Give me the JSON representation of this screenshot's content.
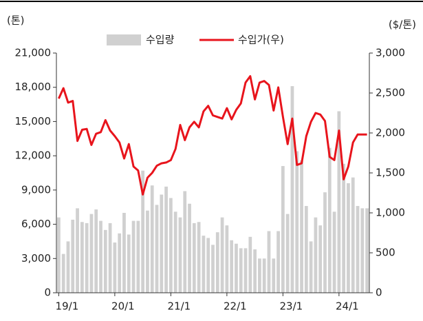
{
  "chart_data": {
    "type": "bar_line",
    "y_label": "(톤)",
    "y2_label": "($/톤)",
    "categories": [
      "19/1",
      null,
      null,
      null,
      null,
      null,
      null,
      null,
      null,
      null,
      null,
      null,
      "20/1",
      null,
      null,
      null,
      null,
      null,
      null,
      null,
      null,
      null,
      null,
      null,
      "21/1",
      null,
      null,
      null,
      null,
      null,
      null,
      null,
      null,
      null,
      null,
      null,
      "22/1",
      null,
      null,
      null,
      null,
      null,
      null,
      null,
      null,
      null,
      null,
      null,
      "23/1",
      null,
      null,
      null,
      null,
      null,
      null,
      null,
      null,
      null,
      null,
      null,
      "24/1",
      null,
      null,
      null,
      null,
      null,
      null
    ],
    "series": [
      {
        "name": "수입량",
        "color": "#d0d0d0",
        "axis": "y",
        "values": [
          6600,
          3400,
          4500,
          6400,
          7400,
          6200,
          6100,
          6900,
          7300,
          6300,
          5500,
          6100,
          4400,
          5200,
          7000,
          5100,
          6300,
          6300,
          10700,
          7200,
          9400,
          7700,
          8600,
          9300,
          8300,
          7100,
          6600,
          8900,
          7800,
          6100,
          6200,
          5000,
          4800,
          4200,
          5300,
          6600,
          5900,
          4600,
          4300,
          3900,
          3900,
          4900,
          3800,
          3000,
          3000,
          5400,
          3000,
          5400,
          11100,
          6900,
          18100,
          12400,
          11600,
          7600,
          4500,
          6600,
          5900,
          8800,
          12700,
          7100,
          15900,
          11300,
          9600,
          10100,
          7600,
          7400,
          7400
        ]
      },
      {
        "name": "수입가(우)",
        "color": "#e8141c",
        "axis": "y2",
        "values": [
          2430,
          2560,
          2380,
          2400,
          1900,
          2040,
          2050,
          1850,
          1990,
          2010,
          2160,
          2030,
          1960,
          1880,
          1680,
          1860,
          1580,
          1530,
          1230,
          1440,
          1500,
          1590,
          1620,
          1630,
          1660,
          1800,
          2100,
          1910,
          2070,
          2140,
          2070,
          2270,
          2340,
          2220,
          2200,
          2180,
          2310,
          2170,
          2290,
          2370,
          2630,
          2710,
          2420,
          2630,
          2650,
          2600,
          2280,
          2570,
          2200,
          1860,
          2180,
          1600,
          1620,
          1960,
          2140,
          2250,
          2230,
          2150,
          1700,
          1660,
          2030,
          1420,
          1580,
          1880,
          1980,
          1980,
          1980
        ]
      }
    ],
    "ylim": [
      0,
      21000
    ],
    "yticks": [
      0,
      {
        "value": 3000,
        "label": "3,000"
      },
      {
        "value": 6000,
        "label": "6,000"
      },
      {
        "value": 9000,
        "label": "9,000"
      },
      {
        "value": 12000,
        "label": "12,000"
      },
      {
        "value": 15000,
        "label": "15,000"
      },
      {
        "value": 18000,
        "label": "18,000"
      },
      {
        "value": 21000,
        "label": "21,000"
      }
    ],
    "y2lim": [
      0,
      3000
    ],
    "y2ticks": [
      0,
      500,
      {
        "value": 1000,
        "label": "1,000"
      },
      {
        "value": 1500,
        "label": "1,500"
      },
      {
        "value": 2000,
        "label": "2,000"
      },
      {
        "value": 2500,
        "label": "2,500"
      },
      {
        "value": 3000,
        "label": "3,000"
      }
    ],
    "legend": "top"
  }
}
